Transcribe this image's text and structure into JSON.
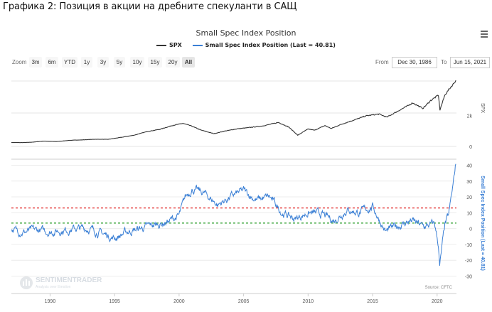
{
  "page_caption": "Графика 2: Позиция в акции на дребните спекуланти в САЩ",
  "chart": {
    "title": "Small Spec Index Position",
    "legend": [
      {
        "label": "SPX",
        "color": "#333333"
      },
      {
        "label": "Small Spec Index Position (Last = 40.81)",
        "color": "#3a7fd5"
      }
    ],
    "zoom_label": "Zoom",
    "zoom_buttons": [
      "3m",
      "6m",
      "YTD",
      "1y",
      "3y",
      "5y",
      "10y",
      "15y",
      "20y",
      "All"
    ],
    "active_zoom": "All",
    "from_label": "From",
    "from_value": "Dec 30, 1986",
    "to_label": "To",
    "to_value": "Jun 15, 2021",
    "watermark_name": "SENTIMENTRADER",
    "watermark_tagline": "Analysis over Emotion",
    "source": "Source: CFTC",
    "colors": {
      "spx": "#333333",
      "spec": "#3a7fd5",
      "red_line": "#e02020",
      "green_line": "#2a9d2a"
    }
  },
  "chart_data": {
    "type": "line",
    "title": "Small Spec Index Position",
    "x_ticks": [
      "1990",
      "1995",
      "2000",
      "2005",
      "2010",
      "2015",
      "2020"
    ],
    "x_range": [
      1987.0,
      2021.5
    ],
    "panels": [
      {
        "name": "SPX",
        "ylabel": "SPX",
        "y_ticks": [
          "0",
          "2k"
        ],
        "ylim": [
          0,
          4300
        ],
        "series": {
          "name": "SPX",
          "points": [
            [
              1987.0,
              250
            ],
            [
              1987.8,
              245
            ],
            [
              1988.5,
              265
            ],
            [
              1989.5,
              340
            ],
            [
              1990.5,
              310
            ],
            [
              1991.5,
              390
            ],
            [
              1992.5,
              420
            ],
            [
              1993.5,
              460
            ],
            [
              1994.5,
              455
            ],
            [
              1995.5,
              580
            ],
            [
              1996.5,
              720
            ],
            [
              1997.5,
              950
            ],
            [
              1998.5,
              1100
            ],
            [
              1999.5,
              1350
            ],
            [
              2000.3,
              1480
            ],
            [
              2000.9,
              1330
            ],
            [
              2001.7,
              1050
            ],
            [
              2002.7,
              820
            ],
            [
              2003.5,
              980
            ],
            [
              2004.5,
              1130
            ],
            [
              2005.5,
              1220
            ],
            [
              2006.5,
              1320
            ],
            [
              2007.7,
              1540
            ],
            [
              2008.5,
              1250
            ],
            [
              2009.2,
              720
            ],
            [
              2010.0,
              1120
            ],
            [
              2010.5,
              1040
            ],
            [
              2011.3,
              1340
            ],
            [
              2011.8,
              1150
            ],
            [
              2012.5,
              1400
            ],
            [
              2013.5,
              1680
            ],
            [
              2014.5,
              1970
            ],
            [
              2015.5,
              2080
            ],
            [
              2016.1,
              1880
            ],
            [
              2016.8,
              2200
            ],
            [
              2017.8,
              2650
            ],
            [
              2018.1,
              2800
            ],
            [
              2018.9,
              2450
            ],
            [
              2019.5,
              2950
            ],
            [
              2020.1,
              3300
            ],
            [
              2020.22,
              2350
            ],
            [
              2020.6,
              3300
            ],
            [
              2020.9,
              3650
            ],
            [
              2021.2,
              3950
            ],
            [
              2021.45,
              4250
            ]
          ]
        }
      },
      {
        "name": "Small Spec Index Position",
        "ylabel": "Small Spec Index Position (Last = 40.81)",
        "y_ticks": [
          40,
          30,
          20,
          10,
          0,
          -10,
          -20,
          -30
        ],
        "ylim": [
          -32,
          42
        ],
        "reference_lines": [
          {
            "value": 13,
            "color": "red"
          },
          {
            "value": 3.5,
            "color": "green"
          }
        ],
        "series": {
          "name": "Small Spec Index Position",
          "last": 40.81,
          "points": [
            [
              1987.0,
              -1
            ],
            [
              1988.0,
              -2
            ],
            [
              1989.0,
              -1
            ],
            [
              1990.0,
              -2
            ],
            [
              1991.0,
              -1
            ],
            [
              1992.0,
              0
            ],
            [
              1993.0,
              0
            ],
            [
              1994.0,
              -3
            ],
            [
              1995.0,
              -6
            ],
            [
              1996.0,
              -2
            ],
            [
              1997.0,
              0
            ],
            [
              1998.0,
              2
            ],
            [
              1999.0,
              4
            ],
            [
              2000.0,
              8
            ],
            [
              2000.5,
              20
            ],
            [
              2001.0,
              25
            ],
            [
              2002.0,
              22
            ],
            [
              2003.0,
              15
            ],
            [
              2004.0,
              20
            ],
            [
              2005.0,
              24
            ],
            [
              2006.0,
              18
            ],
            [
              2007.0,
              20
            ],
            [
              2008.0,
              10
            ],
            [
              2009.0,
              6
            ],
            [
              2010.0,
              10
            ],
            [
              2011.0,
              9
            ],
            [
              2012.0,
              5
            ],
            [
              2013.0,
              12
            ],
            [
              2014.0,
              10
            ],
            [
              2015.0,
              14
            ],
            [
              2016.0,
              -2
            ],
            [
              2017.0,
              2
            ],
            [
              2018.0,
              5
            ],
            [
              2019.0,
              1
            ],
            [
              2019.8,
              3
            ],
            [
              2020.1,
              -10
            ],
            [
              2020.2,
              -24
            ],
            [
              2020.35,
              -14
            ],
            [
              2020.6,
              2
            ],
            [
              2020.9,
              8
            ],
            [
              2021.2,
              25
            ],
            [
              2021.45,
              40.81
            ]
          ]
        }
      }
    ]
  }
}
